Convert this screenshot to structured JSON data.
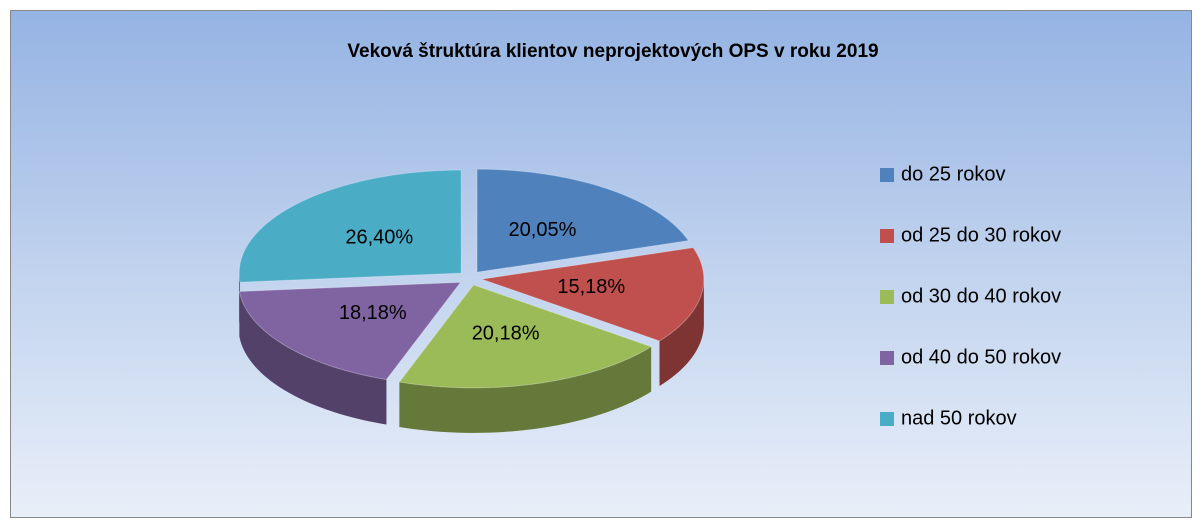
{
  "chart_data": {
    "type": "pie3d",
    "title": "Veková štruktúra klientov neprojektových OPS v roku 2019",
    "categories": [
      "do 25 rokov",
      "od 25 do 30 rokov",
      "od 30 do 40 rokov",
      "od 40 do 50 rokov",
      "nad 50 rokov"
    ],
    "values": [
      20.05,
      15.18,
      20.18,
      18.18,
      26.4
    ],
    "value_labels": [
      "20,05%",
      "15,18%",
      "20,18%",
      "18,18%",
      "26,40%"
    ],
    "colors": [
      "#4f81bd",
      "#c0504d",
      "#9bbb59",
      "#8064a2",
      "#4bacc6"
    ],
    "legend": "right"
  }
}
